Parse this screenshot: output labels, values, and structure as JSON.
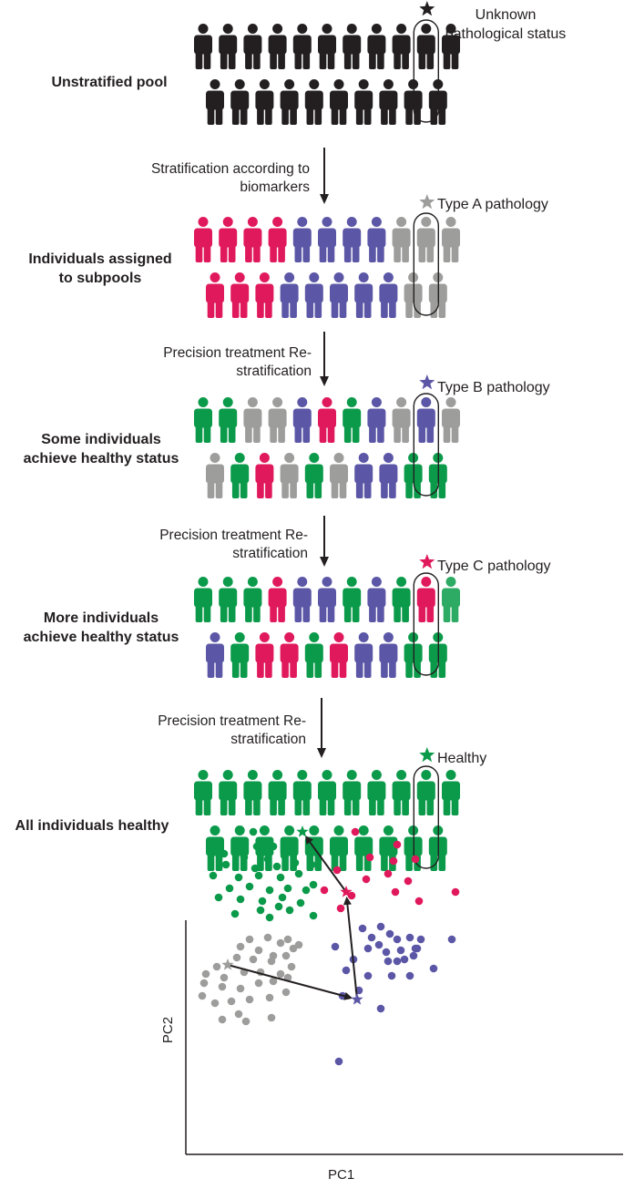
{
  "colors": {
    "black": "#231f20",
    "pink": "#e0195c",
    "purple": "#5b57a6",
    "gray": "#9d9d9c",
    "green": "#0a9a4a",
    "green_light": "#2daa64"
  },
  "stages": [
    {
      "label": "Unstratified pool",
      "state_label": "Unknown pathological status",
      "star_color": "black",
      "row1": [
        "black",
        "black",
        "black",
        "black",
        "black",
        "black",
        "black",
        "black",
        "black",
        "black",
        "black"
      ],
      "row2": [
        "black",
        "black",
        "black",
        "black",
        "black",
        "black",
        "black",
        "black",
        "black",
        "black"
      ]
    },
    {
      "label": "Individuals assigned to subpools",
      "state_label": "Type A pathology",
      "star_color": "gray",
      "row1": [
        "pink",
        "pink",
        "pink",
        "pink",
        "purple",
        "purple",
        "purple",
        "purple",
        "gray",
        "gray",
        "gray"
      ],
      "row2": [
        "pink",
        "pink",
        "pink",
        "purple",
        "purple",
        "purple",
        "purple",
        "purple",
        "gray",
        "gray"
      ]
    },
    {
      "label": "Some individuals achieve healthy status",
      "state_label": "Type B pathology",
      "star_color": "purple",
      "row1": [
        "green",
        "green",
        "gray",
        "gray",
        "purple",
        "pink",
        "green",
        "purple",
        "gray",
        "purple",
        "gray"
      ],
      "row2": [
        "gray",
        "green",
        "pink",
        "gray",
        "green",
        "gray",
        "purple",
        "purple",
        "green",
        "green"
      ]
    },
    {
      "label": "More individuals achieve healthy status",
      "state_label": "Type C pathology",
      "star_color": "pink",
      "row1": [
        "green",
        "green",
        "green",
        "pink",
        "purple",
        "purple",
        "green",
        "purple",
        "green",
        "pink",
        "green_light"
      ],
      "row2": [
        "purple",
        "green",
        "pink",
        "pink",
        "green",
        "pink",
        "purple",
        "purple",
        "green",
        "green"
      ]
    },
    {
      "label": "All individuals healthy",
      "state_label": "Healthy",
      "star_color": "green",
      "row1": [
        "green",
        "green",
        "green",
        "green",
        "green",
        "green",
        "green",
        "green",
        "green",
        "green",
        "green"
      ],
      "row2": [
        "green",
        "green",
        "green",
        "green",
        "green",
        "green",
        "green",
        "green",
        "green",
        "green"
      ]
    }
  ],
  "steps": [
    {
      "label": "Stratification according to biomarkers"
    },
    {
      "label": "Precision treatment Re-stratification"
    },
    {
      "label": "Precision treatment Re-stratification"
    },
    {
      "label": "Precision treatment Re-stratification"
    }
  ],
  "chart_data": {
    "type": "scatter",
    "xlabel": "PC1",
    "ylabel": "PC2",
    "xlim": [
      0,
      480
    ],
    "ylim": [
      0,
      370
    ],
    "series": [
      {
        "color": "green",
        "points": [
          [
            74,
            354
          ],
          [
            60,
            342
          ],
          [
            78,
            338
          ],
          [
            42,
            330
          ],
          [
            96,
            338
          ],
          [
            118,
            334
          ],
          [
            64,
            326
          ],
          [
            90,
            324
          ],
          [
            108,
            328
          ],
          [
            44,
            318
          ],
          [
            76,
            314
          ],
          [
            100,
            316
          ],
          [
            120,
            320
          ],
          [
            138,
            318
          ],
          [
            30,
            306
          ],
          [
            58,
            304
          ],
          [
            80,
            306
          ],
          [
            104,
            304
          ],
          [
            124,
            308
          ],
          [
            140,
            296
          ],
          [
            48,
            292
          ],
          [
            70,
            294
          ],
          [
            92,
            290
          ],
          [
            112,
            292
          ],
          [
            132,
            290
          ],
          [
            36,
            282
          ],
          [
            60,
            280
          ],
          [
            84,
            278
          ],
          [
            106,
            282
          ],
          [
            126,
            276
          ],
          [
            54,
            264
          ],
          [
            82,
            268
          ],
          [
            114,
            268
          ],
          [
            102,
            272
          ],
          [
            92,
            260
          ],
          [
            140,
            262
          ]
        ]
      },
      {
        "color": "pink",
        "points": [
          [
            186,
            354
          ],
          [
            232,
            340
          ],
          [
            202,
            326
          ],
          [
            228,
            322
          ],
          [
            252,
            324
          ],
          [
            166,
            312
          ],
          [
            198,
            302
          ],
          [
            222,
            308
          ],
          [
            244,
            300
          ],
          [
            152,
            290
          ],
          [
            182,
            284
          ],
          [
            230,
            288
          ],
          [
            256,
            278
          ],
          [
            296,
            288
          ],
          [
            170,
            270
          ]
        ]
      },
      {
        "color": "purple",
        "points": [
          [
            194,
            248
          ],
          [
            204,
            238
          ],
          [
            214,
            250
          ],
          [
            224,
            242
          ],
          [
            232,
            236
          ],
          [
            246,
            238
          ],
          [
            200,
            226
          ],
          [
            212,
            230
          ],
          [
            220,
            222
          ],
          [
            236,
            224
          ],
          [
            252,
            226
          ],
          [
            258,
            236
          ],
          [
            164,
            228
          ],
          [
            184,
            214
          ],
          [
            176,
            202
          ],
          [
            222,
            212
          ],
          [
            232,
            212
          ],
          [
            240,
            214
          ],
          [
            250,
            218
          ],
          [
            254,
            226
          ],
          [
            272,
            204
          ],
          [
            292,
            236
          ],
          [
            200,
            196
          ],
          [
            226,
            196
          ],
          [
            246,
            196
          ],
          [
            190,
            180
          ],
          [
            172,
            174
          ],
          [
            214,
            160
          ],
          [
            168,
            102
          ]
        ]
      },
      {
        "color": "gray",
        "points": [
          [
            70,
            236
          ],
          [
            90,
            238
          ],
          [
            104,
            232
          ],
          [
            112,
            236
          ],
          [
            118,
            226
          ],
          [
            124,
            230
          ],
          [
            60,
            228
          ],
          [
            80,
            224
          ],
          [
            96,
            218
          ],
          [
            110,
            218
          ],
          [
            56,
            216
          ],
          [
            74,
            214
          ],
          [
            94,
            212
          ],
          [
            116,
            206
          ],
          [
            34,
            206
          ],
          [
            42,
            194
          ],
          [
            64,
            200
          ],
          [
            82,
            200
          ],
          [
            104,
            198
          ],
          [
            22,
            198
          ],
          [
            40,
            184
          ],
          [
            60,
            182
          ],
          [
            80,
            188
          ],
          [
            96,
            190
          ],
          [
            112,
            194
          ],
          [
            18,
            174
          ],
          [
            32,
            166
          ],
          [
            50,
            168
          ],
          [
            70,
            170
          ],
          [
            92,
            172
          ],
          [
            110,
            178
          ],
          [
            58,
            154
          ],
          [
            94,
            150
          ],
          [
            40,
            148
          ],
          [
            66,
            146
          ],
          [
            20,
            188
          ]
        ]
      }
    ],
    "stars": [
      {
        "color": "green",
        "x": 128,
        "y": 354
      },
      {
        "color": "pink",
        "x": 176,
        "y": 288
      },
      {
        "color": "purple",
        "x": 188,
        "y": 170
      },
      {
        "color": "gray",
        "x": 46,
        "y": 208
      }
    ],
    "arrows": [
      {
        "from": [
          46,
          208
        ],
        "to": [
          188,
          170
        ]
      },
      {
        "from": [
          188,
          170
        ],
        "to": [
          176,
          288
        ]
      },
      {
        "from": [
          176,
          288
        ],
        "to": [
          128,
          354
        ]
      }
    ]
  }
}
